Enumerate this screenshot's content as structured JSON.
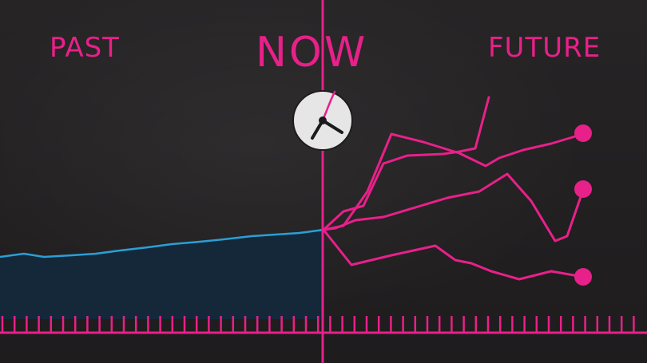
{
  "labels": {
    "past": "PAST",
    "now": "NOW",
    "future": "FUTURE"
  },
  "icons": {
    "clock": "clock-icon"
  },
  "colors": {
    "background": "#222021",
    "accent": "#e8208a",
    "past_line": "#2a9fd6",
    "past_fill": "#14283a",
    "clock_face": "#e6e6e6",
    "clock_hands": "#1b1b1b"
  }
}
